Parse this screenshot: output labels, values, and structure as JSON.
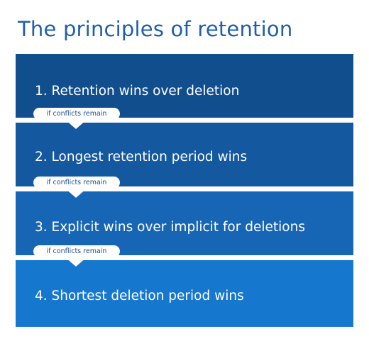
{
  "title": "The principles of retention",
  "principles": [
    {
      "label": "1. Retention wins over deletion"
    },
    {
      "label": "2. Longest retention period wins"
    },
    {
      "label": "3. Explicit wins over implicit for deletions"
    },
    {
      "label": "4. Shortest deletion period wins"
    }
  ],
  "connector_label": "if conflicts remain",
  "colors": {
    "title": "#1f5fa8",
    "box_1": "#114e8e",
    "box_2": "#14589f",
    "box_3": "#1766b6",
    "box_4": "#1677cf"
  }
}
